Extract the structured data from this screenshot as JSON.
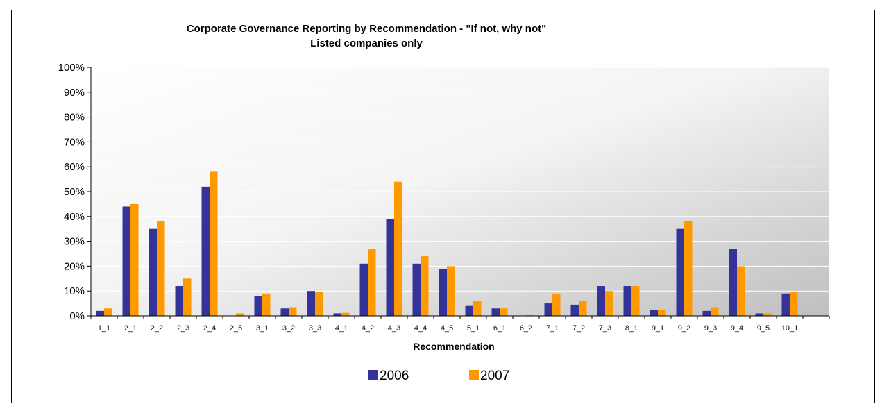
{
  "chart_data": {
    "type": "bar",
    "title": "Corporate Governance Reporting by Recommendation - \"If not, why not\"",
    "subtitle": "Listed companies only",
    "xlabel": "Recommendation",
    "ylabel": "",
    "ylim": [
      0,
      1
    ],
    "yticks": [
      "0%",
      "10%",
      "20%",
      "30%",
      "40%",
      "50%",
      "60%",
      "70%",
      "80%",
      "90%",
      "100%"
    ],
    "grid": true,
    "legend_position": "bottom",
    "categories": [
      "1_1",
      "2_1",
      "2_2",
      "2_3",
      "2_4",
      "2_5",
      "3_1",
      "3_2",
      "3_3",
      "4_1",
      "4_2",
      "4_3",
      "4_4",
      "4_5",
      "5_1",
      "6_1",
      "6_2",
      "7_1",
      "7_2",
      "7_3",
      "8_1",
      "9_1",
      "9_2",
      "9_3",
      "9_4",
      "9_5",
      "10_1"
    ],
    "series": [
      {
        "name": "2006",
        "color": "#333399",
        "values": [
          0.02,
          0.44,
          0.35,
          0.12,
          0.52,
          0.0,
          0.08,
          0.03,
          0.1,
          0.01,
          0.21,
          0.39,
          0.21,
          0.19,
          0.04,
          0.03,
          0.0,
          0.05,
          0.045,
          0.12,
          0.12,
          0.025,
          0.35,
          0.02,
          0.27,
          0.01,
          0.09
        ]
      },
      {
        "name": "2007",
        "color": "#FF9900",
        "values": [
          0.03,
          0.45,
          0.38,
          0.15,
          0.58,
          0.01,
          0.09,
          0.035,
          0.095,
          0.012,
          0.27,
          0.54,
          0.24,
          0.2,
          0.06,
          0.03,
          0.003,
          0.09,
          0.06,
          0.1,
          0.12,
          0.025,
          0.38,
          0.035,
          0.2,
          0.01,
          0.095
        ]
      }
    ]
  }
}
